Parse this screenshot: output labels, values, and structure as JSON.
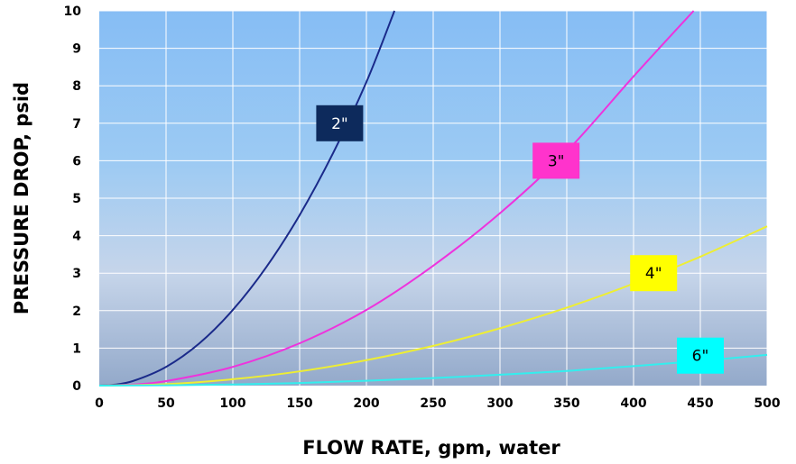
{
  "chart_data": {
    "type": "line",
    "xlabel": "FLOW RATE, gpm, water",
    "ylabel": "PRESSURE DROP, psid",
    "xlim": [
      0,
      500
    ],
    "ylim": [
      0,
      10
    ],
    "x_ticks": [
      "0",
      "50",
      "100",
      "150",
      "200",
      "250",
      "300",
      "350",
      "400",
      "450",
      "500"
    ],
    "y_ticks": [
      "0",
      "1",
      "2",
      "3",
      "4",
      "5",
      "6",
      "7",
      "8",
      "9",
      "10"
    ],
    "grid": true,
    "background": "gradient light blue to steel blue",
    "series": [
      {
        "name": "2\"",
        "color": "#1a2a8a",
        "label_bg": "#0d2a5c",
        "label_color": "#ffffff",
        "label_x": 180,
        "label_y": 7.0,
        "x": [
          0,
          10,
          25,
          50,
          75,
          100,
          125,
          150,
          175,
          200,
          221
        ],
        "y": [
          0,
          0.02,
          0.12,
          0.5,
          1.13,
          2.02,
          3.16,
          4.55,
          6.2,
          8.1,
          10
        ]
      },
      {
        "name": "3\"",
        "color": "#ee33dd",
        "label_bg": "#ff33cc",
        "label_color": "#000000",
        "label_x": 342,
        "label_y": 6.0,
        "x": [
          0,
          25,
          50,
          100,
          150,
          200,
          250,
          300,
          350,
          400,
          445
        ],
        "y": [
          0,
          0.03,
          0.12,
          0.5,
          1.13,
          2.02,
          3.2,
          4.6,
          6.25,
          8.25,
          10
        ]
      },
      {
        "name": "4\"",
        "color": "#eeee33",
        "label_bg": "#ffff00",
        "label_color": "#000000",
        "label_x": 415,
        "label_y": 3.0,
        "x": [
          0,
          50,
          100,
          150,
          200,
          250,
          300,
          350,
          400,
          450,
          500
        ],
        "y": [
          0,
          0.04,
          0.17,
          0.38,
          0.68,
          1.06,
          1.53,
          2.08,
          2.72,
          3.44,
          4.25
        ]
      },
      {
        "name": "6\"",
        "color": "#33eeee",
        "label_bg": "#00ffff",
        "label_color": "#000000",
        "label_x": 450,
        "label_y": 0.8,
        "x": [
          0,
          50,
          100,
          150,
          200,
          250,
          300,
          350,
          400,
          450,
          500
        ],
        "y": [
          0,
          0.01,
          0.03,
          0.07,
          0.13,
          0.2,
          0.29,
          0.39,
          0.52,
          0.66,
          0.82
        ]
      }
    ]
  }
}
